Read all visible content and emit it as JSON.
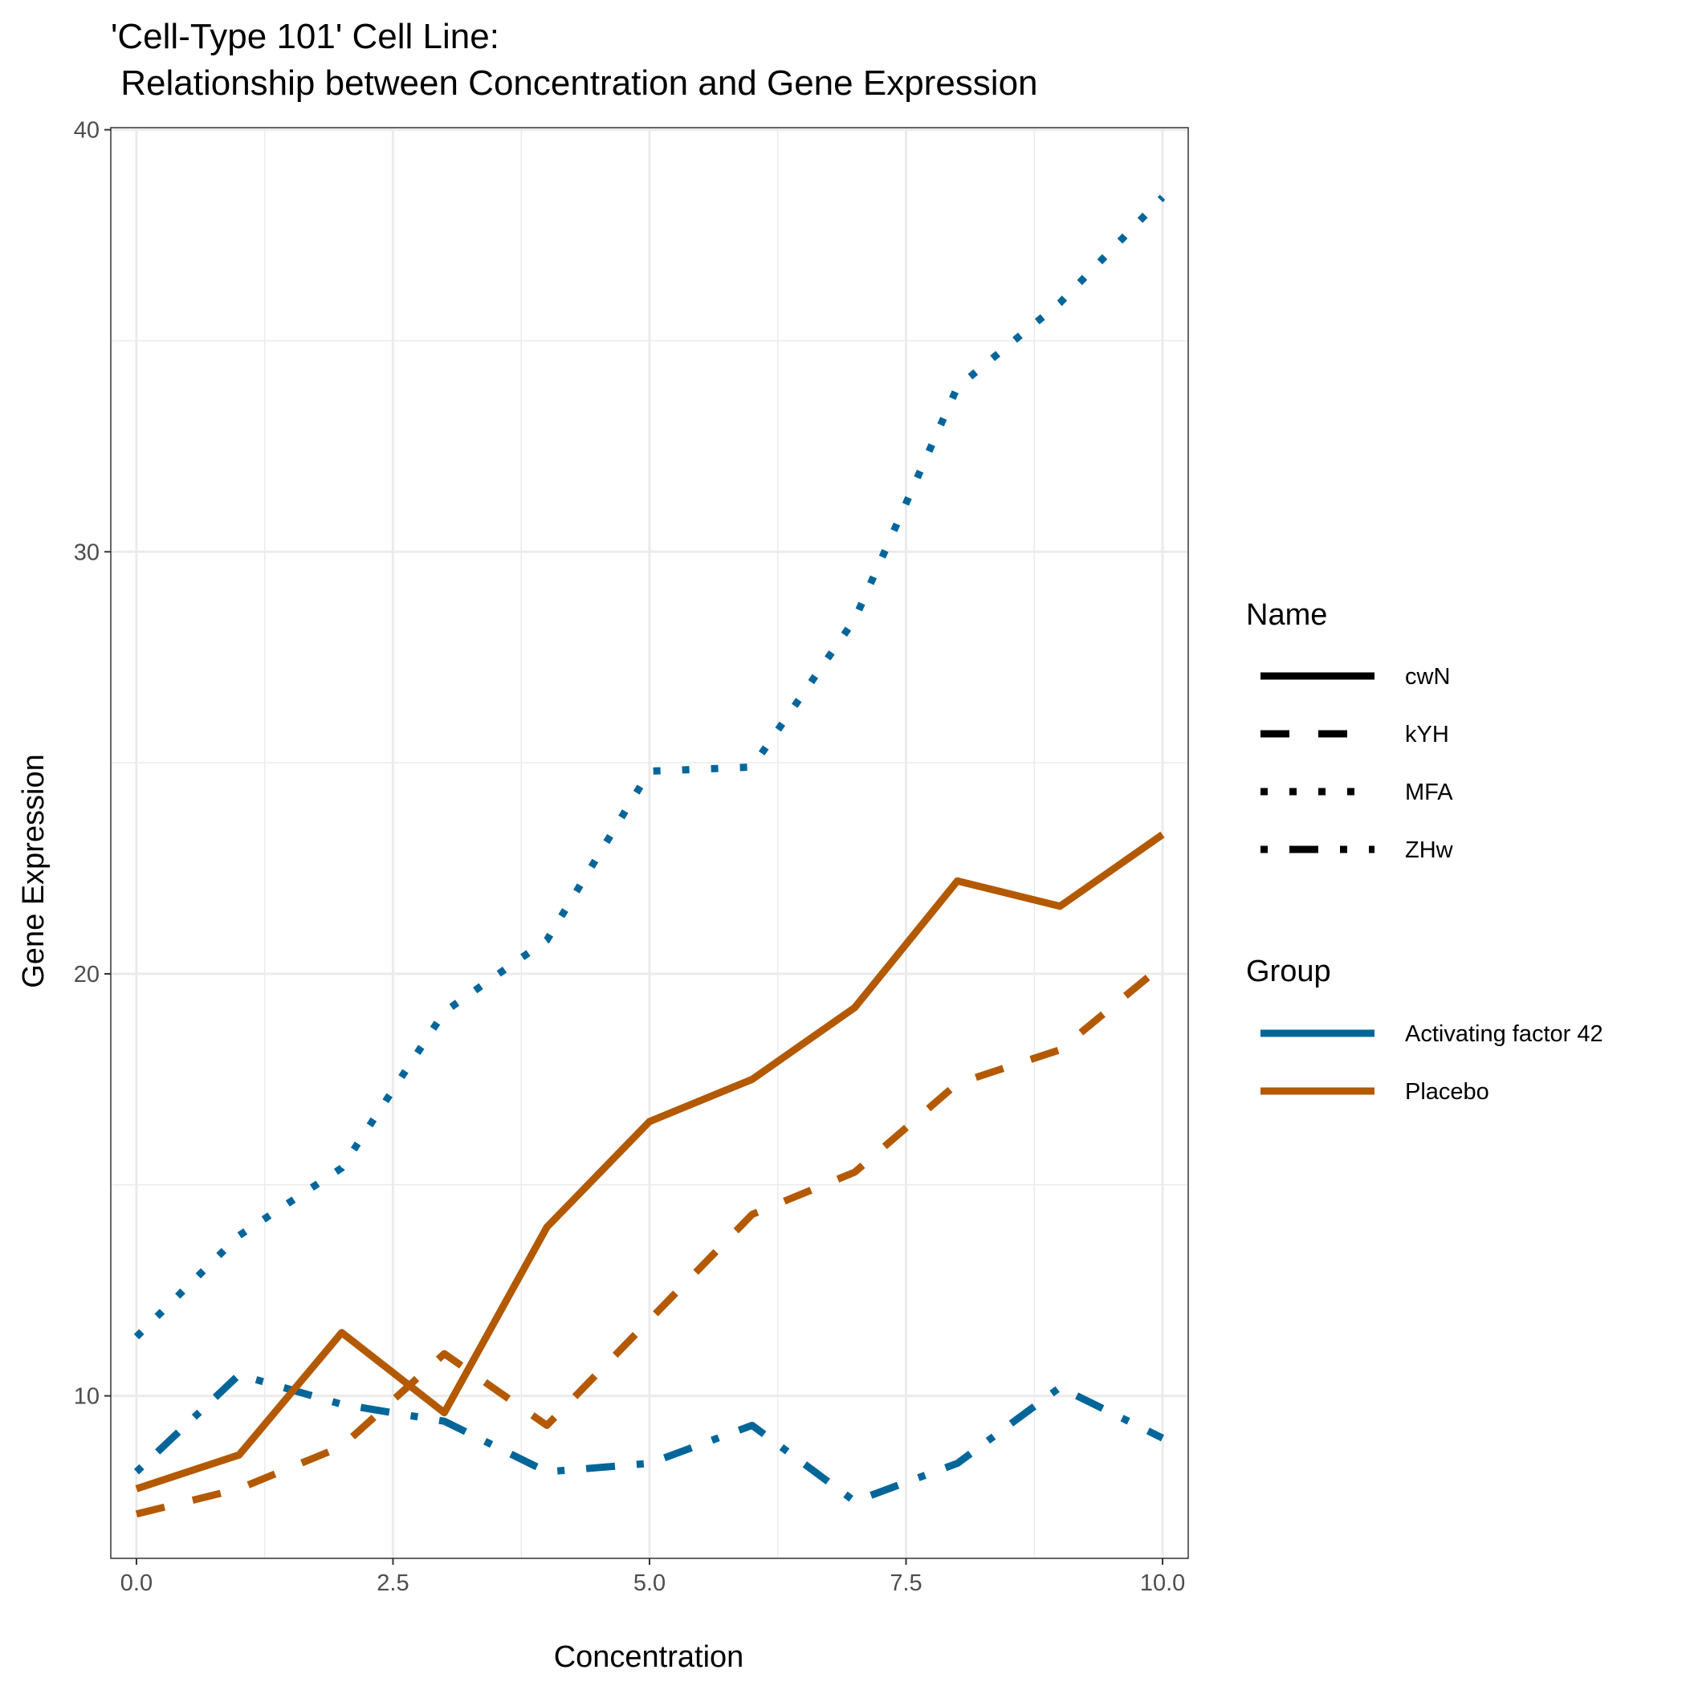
{
  "chart_data": {
    "type": "line",
    "title_line1": "'Cell-Type 101' Cell Line:",
    "title_line2": " Relationship between Concentration and Gene Expression",
    "xlabel": "Concentration",
    "ylabel": "Gene Expression",
    "xlim": [
      -0.25,
      10.25
    ],
    "ylim": [
      6.15,
      40.05
    ],
    "x_ticks": [
      0,
      2.5,
      5,
      7.5,
      10
    ],
    "x_tick_labels": [
      "0.0",
      "2.5",
      "5.0",
      "7.5",
      "10.0"
    ],
    "y_ticks": [
      10,
      20,
      30,
      40
    ],
    "y_tick_labels": [
      "10",
      "20",
      "30",
      "40"
    ],
    "grid": true,
    "legend_position": "right",
    "legend": {
      "name_title": "Name",
      "names": [
        {
          "label": "cwN",
          "linetype": "solid"
        },
        {
          "label": "kYH",
          "linetype": "dashed"
        },
        {
          "label": "MFA",
          "linetype": "dotted"
        },
        {
          "label": "ZHw",
          "linetype": "dotdash"
        }
      ],
      "group_title": "Group",
      "groups": [
        {
          "label": "Activating factor 42",
          "color": "#006699"
        },
        {
          "label": "Placebo",
          "color": "#B35900"
        }
      ]
    },
    "x": [
      0,
      1,
      2,
      3,
      4,
      5,
      6,
      7,
      8,
      9,
      10
    ],
    "series": [
      {
        "name": "MFA",
        "group": "Activating factor 42",
        "linetype": "dotted",
        "color": "#006699",
        "values": [
          11.4,
          13.8,
          15.4,
          19.1,
          20.8,
          24.8,
          24.9,
          28.4,
          33.9,
          35.9,
          38.4
        ]
      },
      {
        "name": "ZHw",
        "group": "Activating factor 42",
        "linetype": "dotdash",
        "color": "#006699",
        "values": [
          8.2,
          10.5,
          9.8,
          9.4,
          8.2,
          8.4,
          9.3,
          7.5,
          8.4,
          10.2,
          9.0
        ]
      },
      {
        "name": "cwN",
        "group": "Placebo",
        "linetype": "solid",
        "color": "#B35900",
        "values": [
          7.8,
          8.6,
          11.5,
          9.6,
          14.0,
          16.5,
          17.5,
          19.2,
          22.2,
          21.6,
          23.3
        ]
      },
      {
        "name": "kYH",
        "group": "Placebo",
        "linetype": "dashed",
        "color": "#B35900",
        "values": [
          7.2,
          7.8,
          8.8,
          11.0,
          9.3,
          11.8,
          14.3,
          15.3,
          17.4,
          18.2,
          20.2
        ]
      }
    ]
  }
}
